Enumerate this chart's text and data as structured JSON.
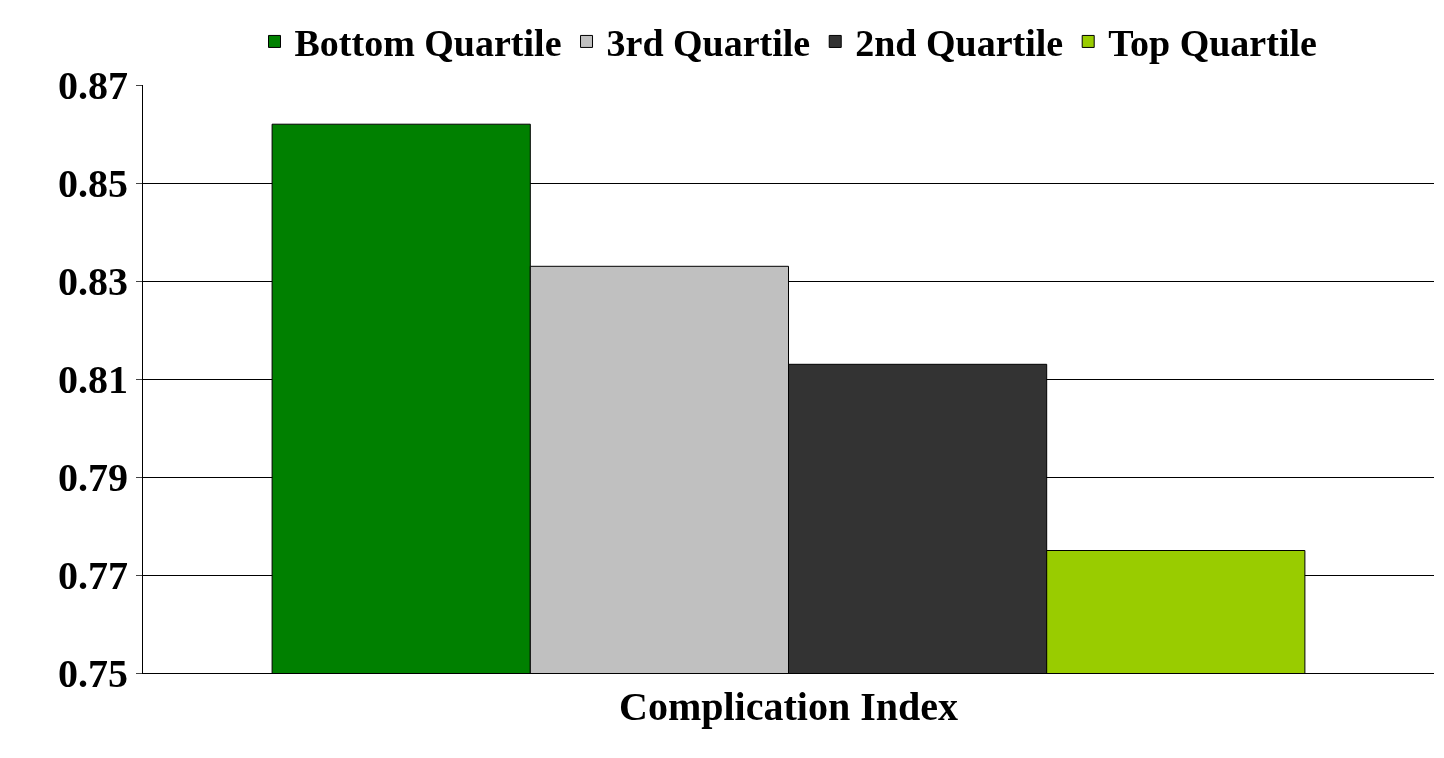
{
  "chart_data": {
    "type": "bar",
    "xlabel": "Complication Index",
    "categories": [
      null
    ],
    "series": [
      {
        "name": "Bottom Quartile",
        "color": "#008000",
        "values": [
          0.862
        ]
      },
      {
        "name": "3rd Quartile",
        "color": "#c0c0c0",
        "values": [
          0.833
        ]
      },
      {
        "name": "2nd Quartile",
        "color": "#333333",
        "values": [
          0.813
        ]
      },
      {
        "name": "Top Quartile",
        "color": "#99cc00",
        "values": [
          0.775
        ]
      }
    ],
    "ylim": [
      0.75,
      0.87
    ],
    "yticks": [
      0.75,
      0.77,
      0.79,
      0.81,
      0.83,
      0.85,
      0.87
    ],
    "grid": "y",
    "legend": "top"
  }
}
